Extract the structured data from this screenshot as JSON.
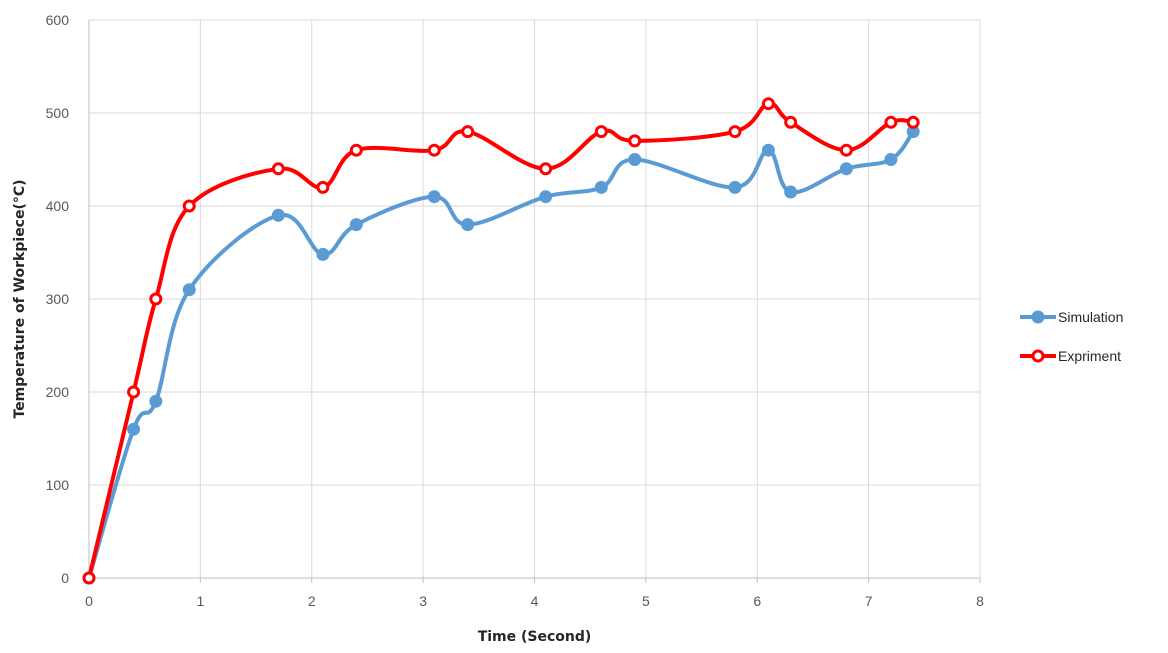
{
  "chart_data": {
    "type": "line",
    "title": "",
    "xlabel": "Time (Second)",
    "ylabel": "Temperature of Workpiece(°C)",
    "xlim": [
      0,
      8
    ],
    "ylim": [
      0,
      600
    ],
    "xticks": [
      "0",
      "1",
      "2",
      "3",
      "4",
      "5",
      "6",
      "7",
      "8"
    ],
    "yticks": [
      "0",
      "100",
      "200",
      "300",
      "400",
      "500",
      "600"
    ],
    "grid": true,
    "legend_position": "right",
    "smooth": true,
    "series": [
      {
        "name": "Simulation",
        "color": "#5b9bd5",
        "marker": "filled-circle",
        "x": [
          0,
          0.4,
          0.6,
          0.9,
          1.7,
          2.1,
          2.4,
          3.1,
          3.4,
          4.1,
          4.6,
          4.9,
          5.8,
          6.1,
          6.3,
          6.8,
          7.2,
          7.4
        ],
        "y": [
          0,
          160,
          190,
          310,
          390,
          348,
          380,
          410,
          380,
          410,
          420,
          450,
          420,
          460,
          415,
          440,
          450,
          480
        ]
      },
      {
        "name": "Expriment",
        "color": "#ff0000",
        "marker": "hollow-circle",
        "x": [
          0,
          0.4,
          0.6,
          0.9,
          1.7,
          2.1,
          2.4,
          3.1,
          3.4,
          4.1,
          4.6,
          4.9,
          5.8,
          6.1,
          6.3,
          6.8,
          7.2,
          7.4
        ],
        "y": [
          0,
          200,
          300,
          400,
          440,
          420,
          460,
          460,
          480,
          440,
          480,
          470,
          480,
          510,
          490,
          460,
          490,
          490
        ]
      }
    ]
  }
}
